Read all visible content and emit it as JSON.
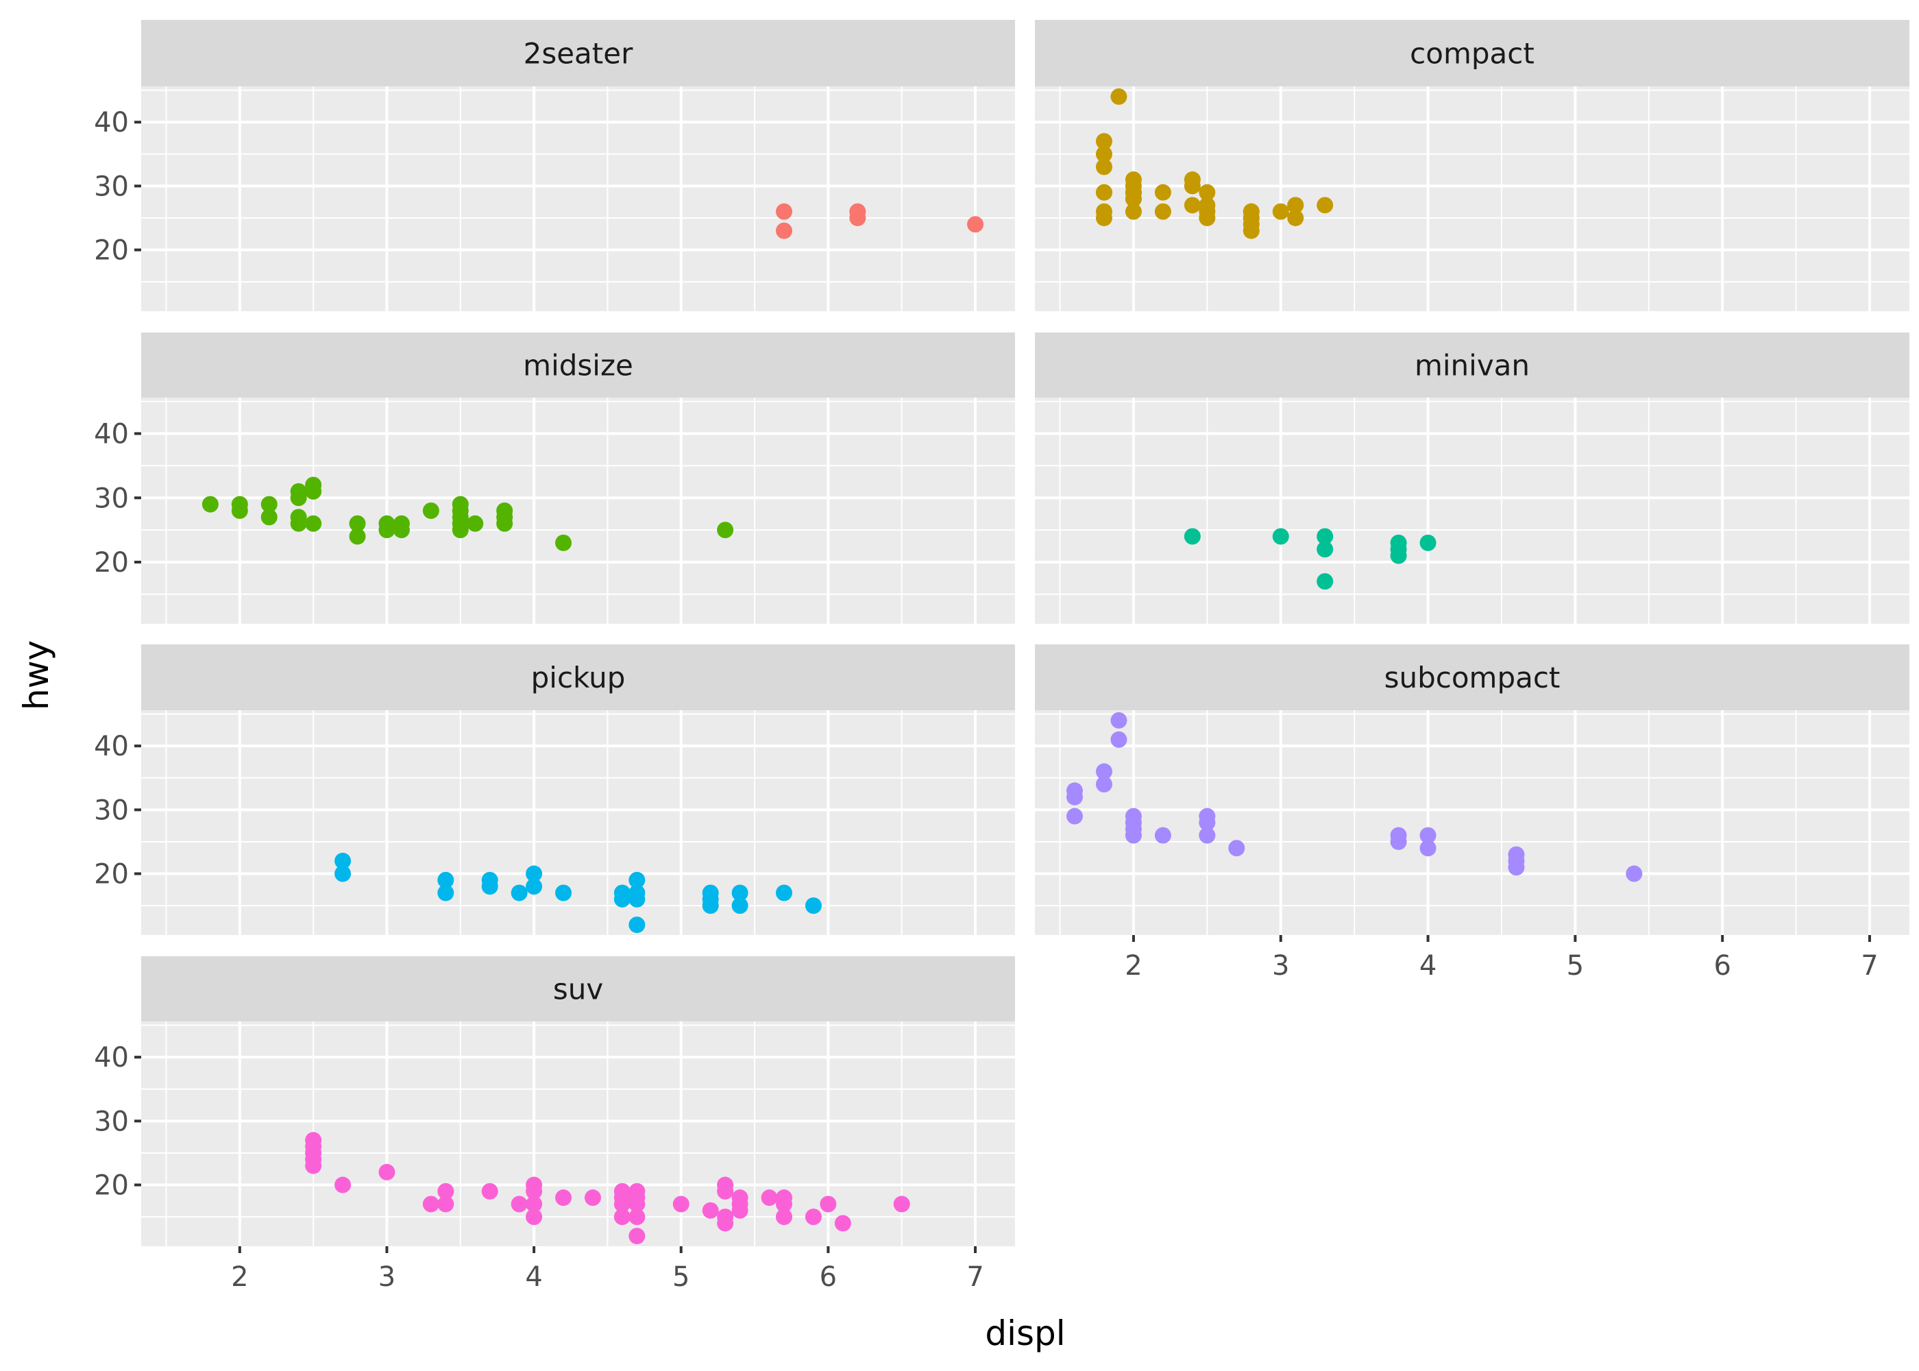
{
  "chart_data": {
    "type": "scatter",
    "title": "",
    "xlabel": "displ",
    "ylabel": "hwy",
    "xlim": [
      1.33,
      7.27
    ],
    "ylim": [
      10.4,
      45.6
    ],
    "x_ticks": [
      2,
      3,
      4,
      5,
      6,
      7
    ],
    "y_ticks": [
      20,
      30,
      40
    ],
    "grid": true,
    "facet_by": "class",
    "panels": [
      {
        "name": "2seater",
        "color": "#F8766D",
        "points": [
          [
            5.7,
            26
          ],
          [
            5.7,
            23
          ],
          [
            6.2,
            26
          ],
          [
            6.2,
            25
          ],
          [
            7.0,
            24
          ]
        ]
      },
      {
        "name": "compact",
        "color": "#C49A00",
        "points": [
          [
            1.8,
            29
          ],
          [
            1.8,
            29
          ],
          [
            2.0,
            31
          ],
          [
            2.0,
            30
          ],
          [
            2.8,
            26
          ],
          [
            2.8,
            26
          ],
          [
            3.1,
            27
          ],
          [
            1.8,
            26
          ],
          [
            1.8,
            25
          ],
          [
            2.0,
            28
          ],
          [
            2.0,
            29
          ],
          [
            2.8,
            25
          ],
          [
            3.1,
            25
          ],
          [
            3.1,
            27
          ],
          [
            2.2,
            26
          ],
          [
            2.2,
            29
          ],
          [
            2.4,
            27
          ],
          [
            2.4,
            31
          ],
          [
            2.5,
            26
          ],
          [
            2.5,
            27
          ],
          [
            1.9,
            44
          ],
          [
            2.0,
            29
          ],
          [
            2.0,
            26
          ],
          [
            2.0,
            29
          ],
          [
            2.8,
            24
          ],
          [
            2.8,
            23
          ],
          [
            1.8,
            33
          ],
          [
            1.8,
            35
          ],
          [
            1.8,
            37
          ],
          [
            2.0,
            28
          ],
          [
            2.4,
            30
          ],
          [
            2.5,
            25
          ],
          [
            2.5,
            29
          ],
          [
            3.3,
            27
          ],
          [
            3.0,
            26
          ],
          [
            2.8,
            25
          ]
        ]
      },
      {
        "name": "midsize",
        "color": "#53B400",
        "points": [
          [
            1.8,
            29
          ],
          [
            2.0,
            29
          ],
          [
            2.0,
            28
          ],
          [
            2.2,
            29
          ],
          [
            2.2,
            27
          ],
          [
            2.4,
            31
          ],
          [
            2.4,
            30
          ],
          [
            2.4,
            27
          ],
          [
            2.4,
            26
          ],
          [
            2.5,
            32
          ],
          [
            2.5,
            31
          ],
          [
            2.5,
            26
          ],
          [
            2.8,
            26
          ],
          [
            2.8,
            24
          ],
          [
            3.0,
            26
          ],
          [
            3.0,
            25
          ],
          [
            3.1,
            26
          ],
          [
            3.1,
            25
          ],
          [
            3.3,
            28
          ],
          [
            3.5,
            29
          ],
          [
            3.5,
            28
          ],
          [
            3.5,
            27
          ],
          [
            3.5,
            26
          ],
          [
            3.5,
            25
          ],
          [
            3.6,
            26
          ],
          [
            3.8,
            28
          ],
          [
            3.8,
            27
          ],
          [
            3.8,
            26
          ],
          [
            4.2,
            23
          ],
          [
            5.3,
            25
          ]
        ]
      },
      {
        "name": "minivan",
        "color": "#00C094",
        "points": [
          [
            2.4,
            24
          ],
          [
            3.0,
            24
          ],
          [
            3.3,
            24
          ],
          [
            3.3,
            22
          ],
          [
            3.3,
            17
          ],
          [
            3.8,
            23
          ],
          [
            3.8,
            22
          ],
          [
            3.8,
            21
          ],
          [
            4.0,
            23
          ]
        ]
      },
      {
        "name": "pickup",
        "color": "#00B6EB",
        "points": [
          [
            2.7,
            22
          ],
          [
            2.7,
            20
          ],
          [
            3.4,
            19
          ],
          [
            3.4,
            17
          ],
          [
            3.7,
            19
          ],
          [
            3.7,
            18
          ],
          [
            3.9,
            17
          ],
          [
            4.0,
            20
          ],
          [
            4.0,
            18
          ],
          [
            4.2,
            17
          ],
          [
            4.6,
            17
          ],
          [
            4.6,
            16
          ],
          [
            4.7,
            19
          ],
          [
            4.7,
            17
          ],
          [
            4.7,
            16
          ],
          [
            4.7,
            12
          ],
          [
            5.2,
            17
          ],
          [
            5.2,
            16
          ],
          [
            5.2,
            15
          ],
          [
            5.4,
            17
          ],
          [
            5.4,
            15
          ],
          [
            5.7,
            17
          ],
          [
            5.9,
            15
          ]
        ]
      },
      {
        "name": "subcompact",
        "color": "#A58AFF",
        "points": [
          [
            1.6,
            33
          ],
          [
            1.6,
            32
          ],
          [
            1.6,
            29
          ],
          [
            1.8,
            36
          ],
          [
            1.8,
            34
          ],
          [
            1.9,
            44
          ],
          [
            1.9,
            41
          ],
          [
            2.0,
            29
          ],
          [
            2.0,
            28
          ],
          [
            2.0,
            27
          ],
          [
            2.0,
            26
          ],
          [
            2.2,
            26
          ],
          [
            2.5,
            29
          ],
          [
            2.5,
            28
          ],
          [
            2.5,
            26
          ],
          [
            2.7,
            24
          ],
          [
            3.8,
            26
          ],
          [
            3.8,
            25
          ],
          [
            4.0,
            26
          ],
          [
            4.0,
            24
          ],
          [
            4.6,
            23
          ],
          [
            4.6,
            22
          ],
          [
            4.6,
            21
          ],
          [
            5.4,
            20
          ]
        ]
      },
      {
        "name": "suv",
        "color": "#FB61D7",
        "points": [
          [
            2.5,
            27
          ],
          [
            2.5,
            26
          ],
          [
            2.5,
            25
          ],
          [
            2.5,
            24
          ],
          [
            2.5,
            23
          ],
          [
            2.7,
            20
          ],
          [
            3.0,
            22
          ],
          [
            3.3,
            17
          ],
          [
            3.4,
            19
          ],
          [
            3.4,
            17
          ],
          [
            3.7,
            19
          ],
          [
            3.9,
            17
          ],
          [
            4.0,
            20
          ],
          [
            4.0,
            19
          ],
          [
            4.0,
            17
          ],
          [
            4.0,
            15
          ],
          [
            4.2,
            18
          ],
          [
            4.4,
            18
          ],
          [
            4.6,
            19
          ],
          [
            4.6,
            18
          ],
          [
            4.6,
            17
          ],
          [
            4.6,
            15
          ],
          [
            4.7,
            19
          ],
          [
            4.7,
            18
          ],
          [
            4.7,
            17
          ],
          [
            4.7,
            15
          ],
          [
            4.7,
            12
          ],
          [
            5.0,
            17
          ],
          [
            5.2,
            16
          ],
          [
            5.3,
            20
          ],
          [
            5.3,
            19
          ],
          [
            5.3,
            15
          ],
          [
            5.3,
            14
          ],
          [
            5.4,
            18
          ],
          [
            5.4,
            17
          ],
          [
            5.4,
            16
          ],
          [
            5.6,
            18
          ],
          [
            5.7,
            18
          ],
          [
            5.7,
            17
          ],
          [
            5.7,
            15
          ],
          [
            5.9,
            15
          ],
          [
            6.0,
            17
          ],
          [
            6.1,
            14
          ],
          [
            6.5,
            17
          ]
        ]
      }
    ]
  }
}
